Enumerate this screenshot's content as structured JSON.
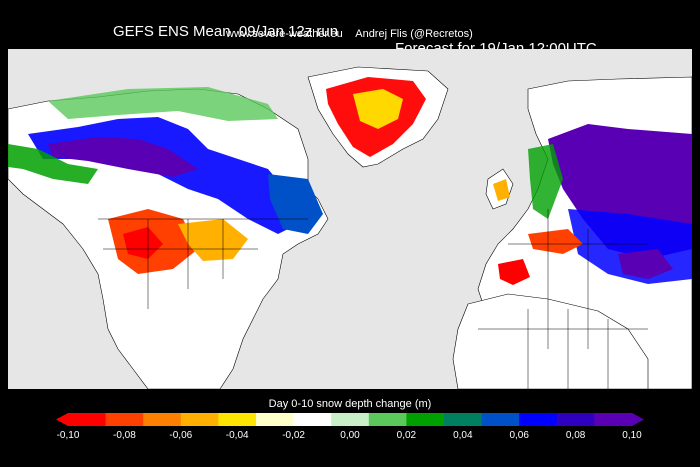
{
  "header": {
    "title_left": "GEFS ENS Mean  09/Jan 12z run",
    "title_right": "Forecast for 19/Jan 12:00UTC",
    "source": "www.severe-weather.eu",
    "author": "Andrej Flis (@Recretos)"
  },
  "legend": {
    "title": "Day 0-10 snow depth change (m)",
    "ticks": [
      "-0,10",
      "-0,08",
      "-0,06",
      "-0,04",
      "-0,02",
      "0,00",
      "0,02",
      "0,04",
      "0,06",
      "0,08",
      "0,10"
    ],
    "colors": [
      "#ff0000",
      "#ff4000",
      "#ff8000",
      "#ffb000",
      "#ffe600",
      "#ffffcc",
      "#ffffff",
      "#c8f0c8",
      "#5ac85a",
      "#00a000",
      "#008060",
      "#0050c8",
      "#0000ff",
      "#3000c0",
      "#5a00b4"
    ]
  },
  "map": {
    "background_color": "#e6e6e6",
    "land_color": "#ffffff",
    "border_color": "#000000"
  }
}
